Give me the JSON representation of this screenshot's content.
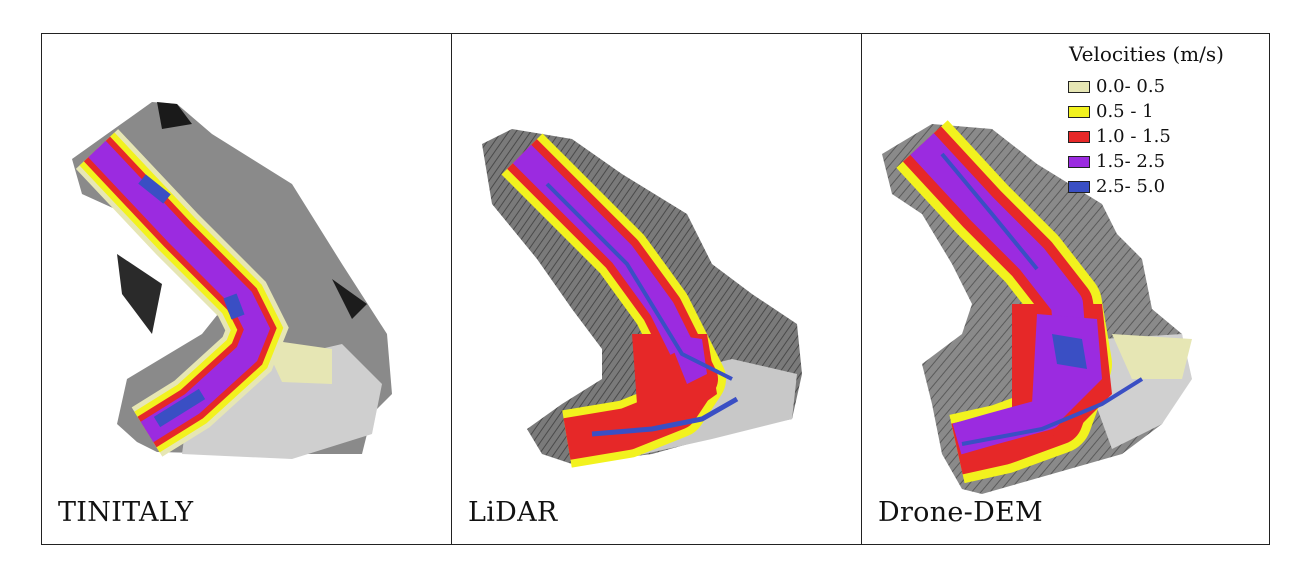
{
  "panels": [
    {
      "label": "TINITALY",
      "terrain": "coarse"
    },
    {
      "label": "LiDAR",
      "terrain": "hillshade"
    },
    {
      "label": "Drone-DEM",
      "terrain": "hillshade"
    }
  ],
  "legend": {
    "title": "Velocities (m/s)",
    "items": [
      {
        "label": "0.0- 0.5",
        "color": "#e6e6b4"
      },
      {
        "label": "0.5 - 1",
        "color": "#f2f21e"
      },
      {
        "label": "1.0 - 1.5",
        "color": "#e62828"
      },
      {
        "label": "1.5- 2.5",
        "color": "#9b2be0"
      },
      {
        "label": "2.5- 5.0",
        "color": "#3a4fc4"
      }
    ]
  }
}
